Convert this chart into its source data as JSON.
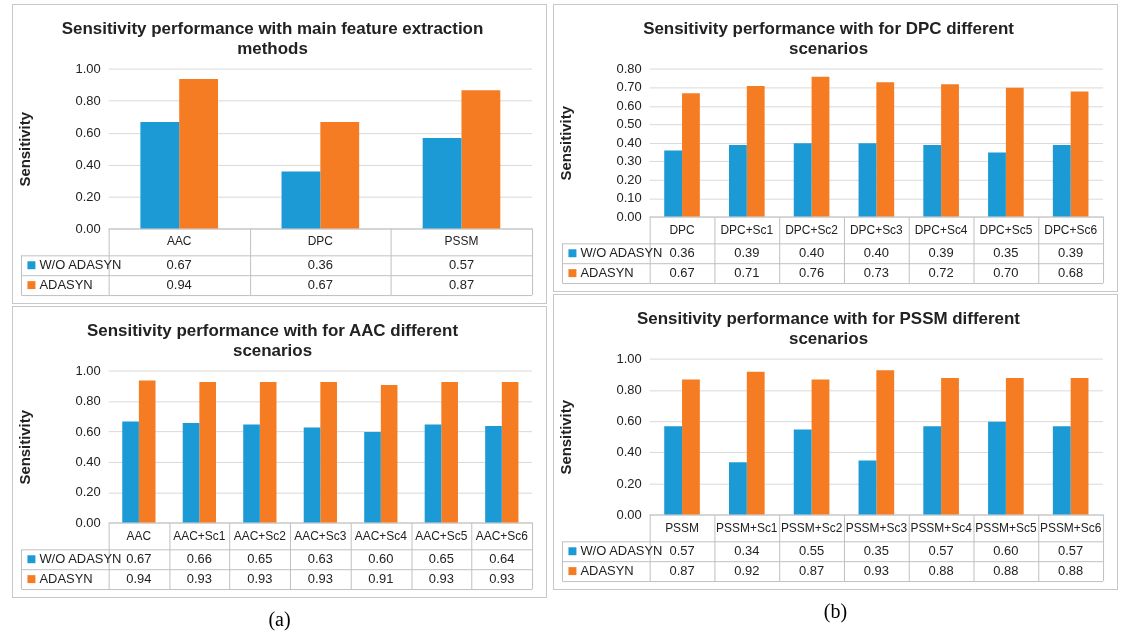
{
  "chart_data": [
    {
      "type": "bar",
      "title": "Sensitivity performance with main feature extraction methods",
      "ylabel": "Sensitivity",
      "categories": [
        "AAC",
        "DPC",
        "PSSM"
      ],
      "series": [
        {
          "name": "W/O ADASYN",
          "color": "#1b9ad6",
          "values": [
            0.67,
            0.36,
            0.57
          ],
          "value_labels": [
            "0.67",
            "0.36",
            "0.57"
          ]
        },
        {
          "name": "ADASYN",
          "color": "#f57c22",
          "values": [
            0.94,
            0.67,
            0.87
          ],
          "value_labels": [
            "0.94",
            "0.67",
            "0.87"
          ]
        }
      ],
      "ylim": [
        0,
        1
      ],
      "yticks": [
        {
          "value": 0,
          "label": "0.00"
        },
        {
          "value": 0.2,
          "label": "0.20"
        },
        {
          "value": 0.4,
          "label": "0.40"
        },
        {
          "value": 0.6,
          "label": "0.60"
        },
        {
          "value": 0.8,
          "label": "0.80"
        },
        {
          "value": 1,
          "label": "1.00"
        }
      ],
      "grid": "y",
      "legend": "bottom left"
    },
    {
      "type": "bar",
      "title": "Sensitivity performance with for DPC different scenarios",
      "ylabel": "Sensitivity",
      "categories": [
        "DPC",
        "DPC+Sc1",
        "DPC+Sc2",
        "DPC+Sc3",
        "DPC+Sc4",
        "DPC+Sc5",
        "DPC+Sc6"
      ],
      "series": [
        {
          "name": "W/O ADASYN",
          "color": "#1b9ad6",
          "values": [
            0.36,
            0.39,
            0.4,
            0.4,
            0.39,
            0.35,
            0.39
          ],
          "value_labels": [
            "0.36",
            "0.39",
            "0.40",
            "0.40",
            "0.39",
            "0.35",
            "0.39"
          ]
        },
        {
          "name": "ADASYN",
          "color": "#f57c22",
          "values": [
            0.67,
            0.71,
            0.76,
            0.73,
            0.72,
            0.7,
            0.68
          ],
          "value_labels": [
            "0.67",
            "0.71",
            "0.76",
            "0.73",
            "0.72",
            "0.70",
            "0.68"
          ]
        }
      ],
      "ylim": [
        0,
        0.8
      ],
      "yticks": [
        {
          "value": 0,
          "label": "0.00"
        },
        {
          "value": 0.1,
          "label": "0.10"
        },
        {
          "value": 0.2,
          "label": "0.20"
        },
        {
          "value": 0.3,
          "label": "0.30"
        },
        {
          "value": 0.4,
          "label": "0.40"
        },
        {
          "value": 0.5,
          "label": "0.50"
        },
        {
          "value": 0.6,
          "label": "0.60"
        },
        {
          "value": 0.7,
          "label": "0.70"
        },
        {
          "value": 0.8,
          "label": "0.80"
        }
      ],
      "grid": "y",
      "legend": "bottom left"
    },
    {
      "type": "bar",
      "title": "Sensitivity performance with for AAC different scenarios",
      "ylabel": "Sensitivity",
      "categories": [
        "AAC",
        "AAC+Sc1",
        "AAC+Sc2",
        "AAC+Sc3",
        "AAC+Sc4",
        "AAC+Sc5",
        "AAC+Sc6"
      ],
      "series": [
        {
          "name": "W/O ADASYN",
          "color": "#1b9ad6",
          "values": [
            0.67,
            0.66,
            0.65,
            0.63,
            0.6,
            0.65,
            0.64
          ],
          "value_labels": [
            "0.67",
            "0.66",
            "0.65",
            "0.63",
            "0.60",
            "0.65",
            "0.64"
          ]
        },
        {
          "name": "ADASYN",
          "color": "#f57c22",
          "values": [
            0.94,
            0.93,
            0.93,
            0.93,
            0.91,
            0.93,
            0.93
          ],
          "value_labels": [
            "0.94",
            "0.93",
            "0.93",
            "0.93",
            "0.91",
            "0.93",
            "0.93"
          ]
        }
      ],
      "ylim": [
        0,
        1
      ],
      "yticks": [
        {
          "value": 0,
          "label": "0.00"
        },
        {
          "value": 0.2,
          "label": "0.20"
        },
        {
          "value": 0.4,
          "label": "0.40"
        },
        {
          "value": 0.6,
          "label": "0.60"
        },
        {
          "value": 0.8,
          "label": "0.80"
        },
        {
          "value": 1,
          "label": "1.00"
        }
      ],
      "grid": "y",
      "legend": "bottom left",
      "annotations": [
        "(a)"
      ]
    },
    {
      "type": "bar",
      "title": "Sensitivity performance with for PSSM different scenarios",
      "ylabel": "Sensitivity",
      "categories": [
        "PSSM",
        "PSSM+Sc1",
        "PSSM+Sc2",
        "PSSM+Sc3",
        "PSSM+Sc4",
        "PSSM+Sc5",
        "PSSM+Sc6"
      ],
      "series": [
        {
          "name": "W/O ADASYN",
          "color": "#1b9ad6",
          "values": [
            0.57,
            0.34,
            0.55,
            0.35,
            0.57,
            0.6,
            0.57
          ],
          "value_labels": [
            "0.57",
            "0.34",
            "0.55",
            "0.35",
            "0.57",
            "0.60",
            "0.57"
          ]
        },
        {
          "name": "ADASYN",
          "color": "#f57c22",
          "values": [
            0.87,
            0.92,
            0.87,
            0.93,
            0.88,
            0.88,
            0.88
          ],
          "value_labels": [
            "0.87",
            "0.92",
            "0.87",
            "0.93",
            "0.88",
            "0.88",
            "0.88"
          ]
        }
      ],
      "ylim": [
        0,
        1
      ],
      "yticks": [
        {
          "value": 0,
          "label": "0.00"
        },
        {
          "value": 0.2,
          "label": "0.20"
        },
        {
          "value": 0.4,
          "label": "0.40"
        },
        {
          "value": 0.6,
          "label": "0.60"
        },
        {
          "value": 0.8,
          "label": "0.80"
        },
        {
          "value": 1,
          "label": "1.00"
        }
      ],
      "grid": "y",
      "legend": "bottom left",
      "annotations": [
        "(b)"
      ]
    }
  ]
}
